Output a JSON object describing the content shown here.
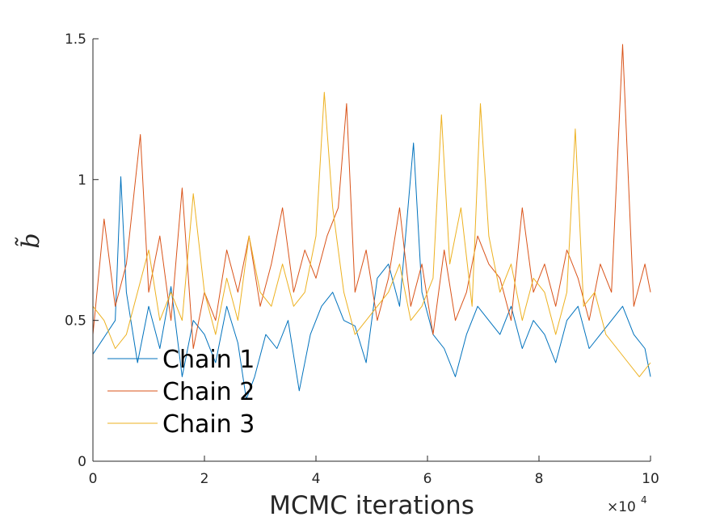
{
  "chart_data": {
    "type": "line",
    "title": "",
    "xlabel": "MCMC iterations",
    "ylabel": "b̃",
    "xlim": [
      0,
      100000
    ],
    "ylim": [
      0,
      1.5
    ],
    "x_tick_labels": [
      "0",
      "2",
      "4",
      "6",
      "8",
      "10"
    ],
    "x_tick_values": [
      0,
      20000,
      40000,
      60000,
      80000,
      100000
    ],
    "x_exponent_label": "×10",
    "x_exponent_power": "4",
    "y_tick_labels": [
      "0",
      "0.5",
      "1",
      "1.5"
    ],
    "y_tick_values": [
      0,
      0.5,
      1,
      1.5
    ],
    "grid": false,
    "legend_position": "lower-left",
    "series": [
      {
        "name": "Chain 1",
        "color": "#0072BD",
        "x": [
          0,
          2000,
          4000,
          5000,
          6000,
          8000,
          10000,
          12000,
          14000,
          16000,
          18000,
          20000,
          22000,
          24000,
          26000,
          27500,
          29000,
          31000,
          33000,
          35000,
          37000,
          39000,
          41000,
          43000,
          45000,
          47000,
          49000,
          51000,
          53000,
          55000,
          57500,
          59000,
          61000,
          63000,
          65000,
          67000,
          69000,
          71000,
          73000,
          75000,
          77000,
          79000,
          81000,
          83000,
          85000,
          87000,
          89000,
          91000,
          93000,
          95000,
          97000,
          99000,
          100000
        ],
        "values": [
          0.38,
          0.44,
          0.5,
          1.01,
          0.6,
          0.35,
          0.55,
          0.4,
          0.62,
          0.3,
          0.5,
          0.45,
          0.35,
          0.55,
          0.42,
          0.22,
          0.3,
          0.45,
          0.4,
          0.5,
          0.25,
          0.45,
          0.55,
          0.6,
          0.5,
          0.48,
          0.35,
          0.65,
          0.7,
          0.55,
          1.13,
          0.6,
          0.45,
          0.4,
          0.3,
          0.45,
          0.55,
          0.5,
          0.45,
          0.55,
          0.4,
          0.5,
          0.45,
          0.35,
          0.5,
          0.55,
          0.4,
          0.45,
          0.5,
          0.55,
          0.45,
          0.4,
          0.3
        ]
      },
      {
        "name": "Chain 2",
        "color": "#D95319",
        "x": [
          0,
          2000,
          4000,
          6000,
          8500,
          10000,
          12000,
          14000,
          16000,
          18000,
          20000,
          22000,
          24000,
          26000,
          28000,
          30000,
          32000,
          34000,
          36000,
          38000,
          40000,
          42000,
          44000,
          45500,
          47000,
          49000,
          51000,
          53000,
          55000,
          57000,
          59000,
          61000,
          63000,
          65000,
          67000,
          69000,
          71000,
          73000,
          75000,
          77000,
          79000,
          81000,
          83000,
          85000,
          87000,
          89000,
          91000,
          93000,
          95000,
          97000,
          99000,
          100000
        ],
        "values": [
          0.45,
          0.86,
          0.55,
          0.7,
          1.16,
          0.6,
          0.8,
          0.5,
          0.97,
          0.4,
          0.6,
          0.5,
          0.75,
          0.6,
          0.8,
          0.55,
          0.7,
          0.9,
          0.6,
          0.75,
          0.65,
          0.8,
          0.9,
          1.27,
          0.6,
          0.75,
          0.5,
          0.65,
          0.9,
          0.55,
          0.7,
          0.45,
          0.75,
          0.5,
          0.6,
          0.8,
          0.7,
          0.65,
          0.5,
          0.9,
          0.6,
          0.7,
          0.55,
          0.75,
          0.65,
          0.5,
          0.7,
          0.6,
          1.48,
          0.55,
          0.7,
          0.6
        ]
      },
      {
        "name": "Chain 3",
        "color": "#EDB120",
        "x": [
          0,
          2000,
          4000,
          6000,
          8000,
          10000,
          12000,
          14000,
          16000,
          18000,
          20000,
          22000,
          24000,
          26000,
          28000,
          30000,
          32000,
          34000,
          36000,
          38000,
          40000,
          41500,
          43000,
          45000,
          47000,
          49000,
          51000,
          53000,
          55000,
          57000,
          59000,
          61000,
          62500,
          64000,
          66000,
          68000,
          69500,
          71000,
          73000,
          75000,
          77000,
          79000,
          81000,
          83000,
          85000,
          86500,
          88000,
          90000,
          92000,
          94000,
          96000,
          98000,
          100000
        ],
        "values": [
          0.55,
          0.5,
          0.4,
          0.45,
          0.6,
          0.75,
          0.5,
          0.6,
          0.5,
          0.95,
          0.6,
          0.45,
          0.65,
          0.5,
          0.8,
          0.6,
          0.55,
          0.7,
          0.55,
          0.6,
          0.8,
          1.31,
          0.9,
          0.6,
          0.45,
          0.5,
          0.55,
          0.6,
          0.7,
          0.5,
          0.55,
          0.65,
          1.23,
          0.7,
          0.9,
          0.55,
          1.27,
          0.8,
          0.6,
          0.7,
          0.5,
          0.65,
          0.6,
          0.45,
          0.6,
          1.18,
          0.55,
          0.6,
          0.45,
          0.4,
          0.35,
          0.3,
          0.35
        ]
      }
    ]
  }
}
